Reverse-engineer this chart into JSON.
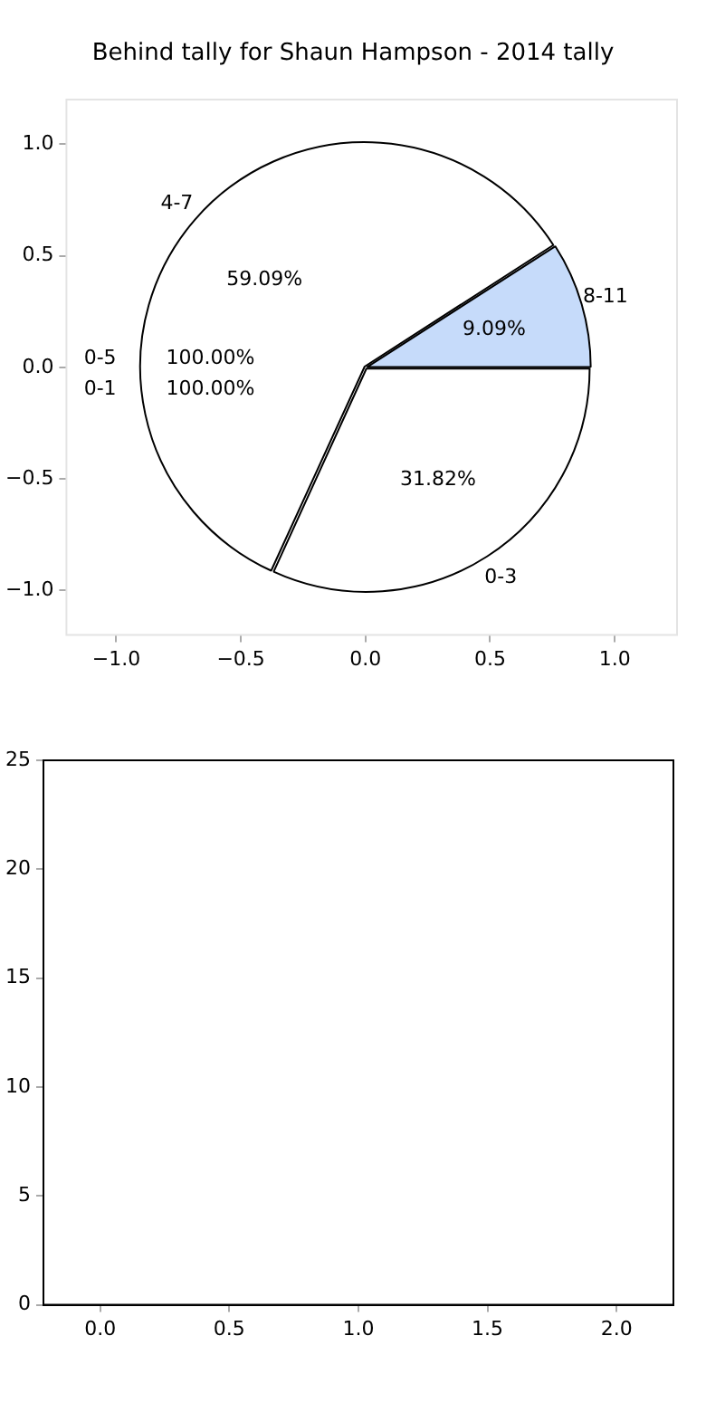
{
  "chart_data": [
    {
      "type": "pie",
      "title": "Behind tally for Shaun Hampson - 2014 tally",
      "categories": [
        "0-3",
        "4-7",
        "8-11"
      ],
      "values": [
        31.82,
        59.09,
        9.09
      ],
      "colors": [
        "#ffffff",
        "#ffffff",
        "#c6dbfa"
      ],
      "value_labels": [
        "31.82%",
        "59.09%",
        "9.09%"
      ],
      "annotations": [
        "0-5",
        "0-1",
        "100.00%",
        "100.00%"
      ],
      "legend": false
    },
    {
      "type": "scatter",
      "xlim": [
        -1.2,
        1.25
      ],
      "xticks": [
        {
          "value": -1,
          "label": "−1.0"
        },
        {
          "value": -0.5,
          "label": "−0.5"
        },
        {
          "value": 0,
          "label": "0.0"
        },
        {
          "value": 0.5,
          "label": "0.5"
        },
        {
          "value": 1,
          "label": "1.0"
        }
      ],
      "ylim": [
        -1.2,
        1.2
      ],
      "yticks": [
        {
          "value": -1,
          "label": "−1.0"
        },
        {
          "value": -0.5,
          "label": "−0.5"
        },
        {
          "value": 0,
          "label": "0.0"
        },
        {
          "value": 0.5,
          "label": "0.5"
        },
        {
          "value": 1,
          "label": "1.0"
        }
      ],
      "grid": false,
      "legend": false
    },
    {
      "type": "scatter",
      "xlim": [
        -0.22,
        2.22
      ],
      "xticks": [
        {
          "value": 0,
          "label": "0.0"
        },
        {
          "value": 0.5,
          "label": "0.5"
        },
        {
          "value": 1,
          "label": "1.0"
        },
        {
          "value": 1.5,
          "label": "1.5"
        },
        {
          "value": 2,
          "label": "2.0"
        }
      ],
      "ylim": [
        0,
        25
      ],
      "yticks": [
        0,
        5,
        10,
        15,
        20,
        25
      ],
      "grid": false,
      "legend": false
    }
  ]
}
